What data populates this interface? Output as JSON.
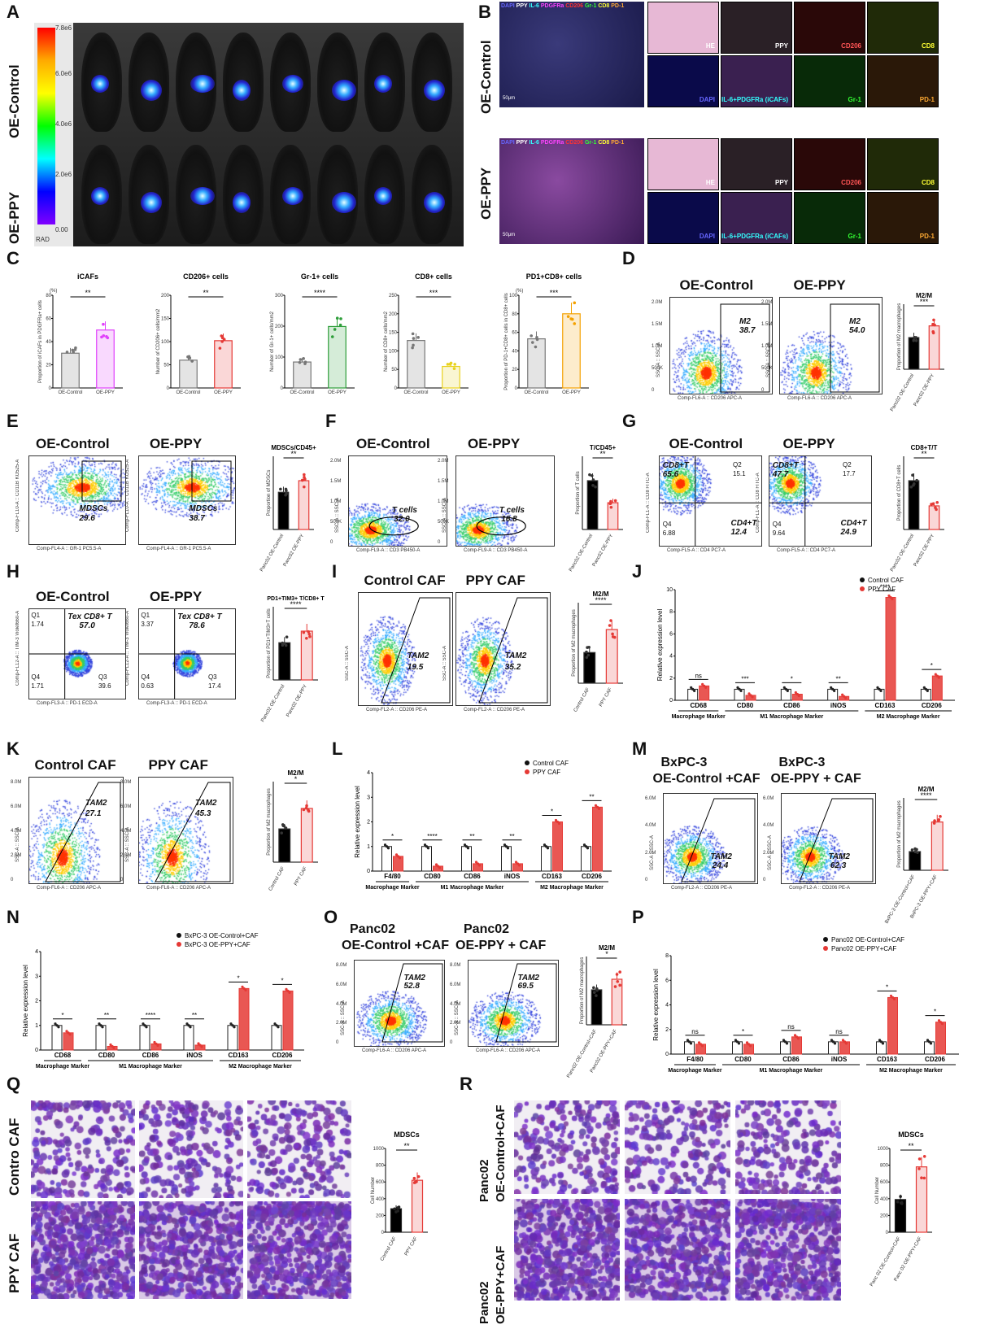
{
  "panels": {
    "A": "A",
    "B": "B",
    "C": "C",
    "D": "D",
    "E": "E",
    "F": "F",
    "G": "G",
    "H": "H",
    "I": "I",
    "J": "J",
    "K": "K",
    "L": "L",
    "M": "M",
    "N": "N",
    "O": "O",
    "P": "P",
    "Q": "Q",
    "R": "R"
  },
  "A": {
    "row1": "OE-Control",
    "row2": "OE-PPY",
    "scale_top": "7.8e6",
    "scale_ticks": [
      "6.0e6",
      "4.0e6",
      "2.0e6",
      "0.00"
    ],
    "scale_unit": "RAD"
  },
  "B": {
    "row1": "OE-Control",
    "row2": "OE-PPY",
    "merge_legend": [
      "DAPI",
      "PPY",
      "IL-6",
      "PDGFRa",
      "CD206",
      "Gr-1",
      "CD8",
      "PD-1"
    ],
    "scale_bar": "50μm",
    "tiles": [
      "HE",
      "PPY",
      "CD206",
      "CD8",
      "DAPI",
      "IL-6+PDGFRa (iCAFs)",
      "Gr-1",
      "PD-1"
    ]
  },
  "C": {
    "charts": [
      {
        "title": "iCAFs",
        "ylabel": "Proportion of iCAFs in PDGFRa+ cells",
        "unit": "(%)",
        "categories": [
          "OE-Control",
          "OE-PPY"
        ],
        "values": [
          30,
          50
        ],
        "ymax": 80,
        "sig": "**",
        "colors": [
          "#777777",
          "#e040fb"
        ],
        "ticks": [
          "0",
          "20",
          "40",
          "60",
          "80"
        ]
      },
      {
        "title": "CD206+ cells",
        "ylabel": "Number of CD206+ cells/mm2",
        "categories": [
          "OE-Control",
          "OE-PPY"
        ],
        "values": [
          60,
          102
        ],
        "ymax": 200,
        "sig": "**",
        "colors": [
          "#777777",
          "#e53935"
        ],
        "ticks": [
          "0",
          "50",
          "100",
          "150",
          "200"
        ]
      },
      {
        "title": "Gr-1+ cells",
        "ylabel": "Number of Gr-1+ cells/mm2",
        "categories": [
          "OE-Control",
          "OE-PPY"
        ],
        "values": [
          98,
          232
        ],
        "ymax": 350,
        "sig": "****",
        "colors": [
          "#777777",
          "#2e9e3a"
        ],
        "ticks": [
          "0",
          "100",
          "200",
          "300"
        ]
      },
      {
        "title": "CD8+ cells",
        "ylabel": "Number of CD8+ cells/mm2",
        "categories": [
          "OE-Control",
          "OE-PPY"
        ],
        "values": [
          128,
          58
        ],
        "ymax": 250,
        "sig": "***",
        "colors": [
          "#777777",
          "#e8d21e"
        ],
        "ticks": [
          "0",
          "50",
          "100",
          "150",
          "200",
          "250"
        ]
      },
      {
        "title": "PD1+CD8+ cells",
        "ylabel": "Proportion of PD-1+CD8+ cells in CD8+ cells",
        "unit": "(%)",
        "categories": [
          "OE-Control",
          "OE-PPY"
        ],
        "values": [
          53,
          80
        ],
        "ymax": 100,
        "sig": "***",
        "colors": [
          "#777777",
          "#f4a100"
        ],
        "ticks": [
          "0",
          "20",
          "40",
          "60",
          "80",
          "100"
        ]
      }
    ]
  },
  "D": {
    "left_title": "OE-Control",
    "right_title": "OE-PPY",
    "gate": "M2",
    "left_value": "38.7",
    "right_value": "54.0",
    "xlabel": "Comp-FL6-A :: CD206 APC-A",
    "ylabel": "SSC-A :: SSC-A",
    "yticks": [
      "2.0M",
      "1.5M",
      "1.0M",
      "500K",
      "0"
    ],
    "bar": {
      "title": "M2/M",
      "ylabel": "Proportion of M2 macrophages",
      "categories": [
        "Panc02 OE-Control",
        "Panc02 OE-PPY"
      ],
      "values": [
        38,
        52
      ],
      "sig": "***"
    }
  },
  "E": {
    "left_title": "OE-Control",
    "right_title": "OE-PPY",
    "gate": "MDSCs",
    "left_value": "29.6",
    "right_value": "38.7",
    "xlabel": "Comp-FL4-A :: GR-1 PC5.5-A",
    "ylabel": "Comp-FL10-A :: CD11B KO525-A",
    "bar": {
      "title": "MDSCs/CD45+",
      "ylabel": "Proportion of MDSCs",
      "categories": [
        "Panc02 OE-Control",
        "Panc02 OE-PPY"
      ],
      "values": [
        29,
        38
      ],
      "sig": "**"
    }
  },
  "F": {
    "left_title": "OE-Control",
    "right_title": "OE-PPY",
    "gate": "T cells",
    "left_value": "32.0",
    "right_value": "16.8",
    "xlabel": "Comp-FL9-A :: CD3 PB450-A",
    "ylabel": "SSC-A :: SSC-A",
    "yticks": [
      "2.0M",
      "1.5M",
      "1.0M",
      "500K",
      "0"
    ],
    "bar": {
      "title": "T/CD45+",
      "ylabel": "Proportion of T cells",
      "categories": [
        "Panc02 OE-Control",
        "Panc02 OE-PPY"
      ],
      "values": [
        31,
        17
      ],
      "sig": "**"
    }
  },
  "G": {
    "left_title": "OE-Control",
    "right_title": "OE-PPY",
    "xlabel": "Comp-FL5-A :: CD4 PC7-A",
    "ylabel": "Comp-FL1-A :: CD8 FITC-A",
    "left": {
      "cd8": "CD8+T",
      "cd8v": "65.6",
      "q2": "Q2",
      "q2v": "15.1",
      "q4": "Q4",
      "q4v": "6.88",
      "cd4": "CD4+T",
      "cd4v": "12.4"
    },
    "right": {
      "cd8": "CD8+T",
      "cd8v": "47.7",
      "q2": "Q2",
      "q2v": "17.7",
      "q4": "Q4",
      "q4v": "9.64",
      "cd4": "CD4+T",
      "cd4v": "24.9"
    },
    "bar": {
      "title": "CD8+T/T",
      "ylabel": "Proportion of CD8+T cells",
      "categories": [
        "Panc02 OE-Control",
        "Panc02 OE-PPY"
      ],
      "values": [
        62,
        30
      ],
      "sig": "**"
    }
  },
  "H": {
    "left_title": "OE-Control",
    "right_title": "OE-PPY",
    "xlabel": "Comp-FL3-A :: PD-1 ECD-A",
    "ylabel": "Comp-FL12-A :: TIM-3 Violet660-A",
    "left": {
      "q1": "Q1",
      "q1v": "1.74",
      "tex": "Tex CD8+ T",
      "texv": "57.0",
      "q4": "Q4",
      "q4v": "1.71",
      "q3": "Q3",
      "q3v": "39.6"
    },
    "right": {
      "q1": "Q1",
      "q1v": "3.37",
      "tex": "Tex CD8+ T",
      "texv": "78.6",
      "q4": "Q4",
      "q4v": "0.63",
      "q3": "Q3",
      "q3v": "17.4"
    },
    "bar": {
      "title": "PD1+TIM3+ T/CD8+ T",
      "ylabel": "Proportion of PD1+TIM3+T cells",
      "categories": [
        "Panc02 OE-Control",
        "Panc02 OE-PPY"
      ],
      "values": [
        58,
        76
      ],
      "sig": "****"
    }
  },
  "I": {
    "left_title": "Control CAF",
    "right_title": "PPY CAF",
    "gate": "TAM2",
    "left_value": "19.5",
    "right_value": "35.2",
    "xlabel": "Comp-FL2-A :: CD206 PE-A",
    "ylabel": "SSC-A :: SSC-A",
    "bar": {
      "title": "M2/M",
      "ylabel": "Proportion of M2 macrophages",
      "categories": [
        "Control CAF",
        "PPY CAF"
      ],
      "values": [
        20,
        35
      ],
      "sig": "****"
    }
  },
  "J": {
    "legend": [
      "Control CAF",
      "PPY CAF"
    ],
    "ylabel": "Relative expression level",
    "ymax": 10,
    "yticks": [
      "0",
      "2",
      "4",
      "6",
      "8",
      "10"
    ],
    "markers": [
      "CD68",
      "CD80",
      "CD86",
      "iNOS",
      "CD163",
      "CD206"
    ],
    "control": [
      1,
      1,
      1,
      1,
      1,
      1
    ],
    "treated": [
      1.3,
      0.45,
      0.55,
      0.35,
      9.3,
      2.2
    ],
    "sig": [
      "ns",
      "***",
      "*",
      "**",
      "****",
      "*"
    ],
    "groups": [
      "Macrophage Marker",
      "M1 Macrophage Marker",
      "M2 Macrophage Marker"
    ]
  },
  "K": {
    "left_title": "Control CAF",
    "right_title": "PPY CAF",
    "gate": "TAM2",
    "left_value": "27.1",
    "right_value": "45.3",
    "xlabel": "Comp-FL6-A :: CD206 APC-A",
    "ylabel": "SSC-A :: SSC-A",
    "yticks": [
      "8.0M",
      "6.0M",
      "4.0M",
      "2.0M",
      "0"
    ],
    "bar": {
      "title": "M2/M",
      "ylabel": "Proportion of M2 macrophages",
      "categories": [
        "Control CAF",
        "PPY CAF"
      ],
      "values": [
        26,
        42
      ],
      "sig": "*"
    }
  },
  "L": {
    "legend": [
      "Control CAF",
      "PPY CAF"
    ],
    "ylabel": "Relative expression level",
    "ymax": 4,
    "yticks": [
      "0",
      "1",
      "2",
      "3",
      "4"
    ],
    "markers": [
      "F4/80",
      "CD80",
      "CD86",
      "iNOS",
      "CD163",
      "CD206"
    ],
    "control": [
      1,
      1,
      1,
      1,
      1,
      1
    ],
    "treated": [
      0.6,
      0.2,
      0.3,
      0.3,
      2.0,
      2.6
    ],
    "sig": [
      "*",
      "****",
      "**",
      "**",
      "*",
      "**"
    ],
    "groups": [
      "Macrophage Marker",
      "M1 Macrophage Marker",
      "M2 Macrophage Marker"
    ]
  },
  "M": {
    "left_title_1": "BxPC-3",
    "left_title_2": "OE-Control +CAF",
    "right_title_1": "BxPC-3",
    "right_title_2": "OE-PPY + CAF",
    "gate": "TAM2",
    "left_value": "24.4",
    "right_value": "62.3",
    "xlabel": "Comp-FL2-A :: CD206 PE-A",
    "ylabel": "SSC-A :: SSC-A",
    "yticks": [
      "6.0M",
      "4.0M",
      "2.0M",
      "0"
    ],
    "bar": {
      "title": "M2/M",
      "ylabel": "Proportion of M2 macrophages",
      "categories": [
        "BxPC-3 OE-Control+CAF",
        "BxPC-3 OE-PPY+CAF"
      ],
      "values": [
        24,
        62
      ],
      "sig": "****"
    }
  },
  "N": {
    "legend": [
      "BxPC-3 OE-Control+CAF",
      "BxPC-3 OE-PPY+CAF"
    ],
    "ylabel": "Relative expression level",
    "ymax": 4,
    "yticks": [
      "0",
      "1",
      "2",
      "3",
      "4"
    ],
    "markers": [
      "CD68",
      "CD80",
      "CD86",
      "iNOS",
      "CD163",
      "CD206"
    ],
    "control": [
      1,
      1,
      1,
      1,
      1,
      1
    ],
    "treated": [
      0.7,
      0.15,
      0.25,
      0.2,
      2.5,
      2.4
    ],
    "sig": [
      "*",
      "**",
      "****",
      "**",
      "*",
      "*"
    ],
    "groups": [
      "Macrophage Marker",
      "M1 Macrophage Marker",
      "M2 Macrophage Marker"
    ]
  },
  "O": {
    "left_title_1": "Panc02",
    "left_title_2": "OE-Control +CAF",
    "right_title_1": "Panc02",
    "right_title_2": "OE-PPY + CAF",
    "gate": "TAM2",
    "left_value": "52.8",
    "right_value": "69.5",
    "xlabel": "Comp-FL6-A :: CD206 APC-A",
    "ylabel": "SSC-A :: SSC-A",
    "yticks": [
      "8.0M",
      "6.0M",
      "4.0M",
      "2.0M",
      "0"
    ],
    "bar": {
      "title": "M2/M",
      "ylabel": "Proportion of M2 macrophages",
      "categories": [
        "Panc02 OE-Control+CAF",
        "Panc02 OE-PPY+CAF"
      ],
      "values": [
        53,
        69
      ],
      "sig": "*"
    }
  },
  "P": {
    "legend": [
      "Panc02 OE-Control+CAF",
      "Panc02 OE-PPY+CAF"
    ],
    "ylabel": "Relative expression level",
    "ymax": 8,
    "yticks": [
      "0",
      "2",
      "4",
      "6",
      "8"
    ],
    "markers": [
      "F4/80",
      "CD80",
      "CD86",
      "iNOS",
      "CD163",
      "CD206"
    ],
    "control": [
      1,
      1,
      1,
      1,
      1,
      1
    ],
    "treated": [
      0.8,
      0.8,
      1.4,
      1.0,
      4.6,
      2.6
    ],
    "sig": [
      "ns",
      "*",
      "ns",
      "ns",
      "*",
      "*"
    ],
    "groups": [
      "Macrophage Marker",
      "M1 Macrophage Marker",
      "M2 Macrophage Marker"
    ]
  },
  "Q": {
    "row1": "Contro CAF",
    "row2": "PPY CAF",
    "bar": {
      "title": "MDSCs",
      "ylabel": "Cell Number",
      "ymax": 1000,
      "yticks": [
        "0",
        "200",
        "400",
        "600",
        "800",
        "1000"
      ],
      "categories": [
        "Control CAF",
        "PPY CAF"
      ],
      "values": [
        280,
        620
      ],
      "sig": "**"
    }
  },
  "R": {
    "row1_a": "Panc02",
    "row1_b": "OE-Control+CAF",
    "row2_a": "Panc02",
    "row2_b": "OE-PPY+CAF",
    "bar": {
      "title": "MDSCs",
      "ylabel": "Cell Number",
      "ymax": 1000,
      "yticks": [
        "0",
        "200",
        "400",
        "600",
        "800",
        "1000"
      ],
      "categories": [
        "Panc 02 OE-Control+CAF",
        "Panc 02 OE-PPY+CAF"
      ],
      "values": [
        390,
        780
      ],
      "sig": "**"
    }
  }
}
